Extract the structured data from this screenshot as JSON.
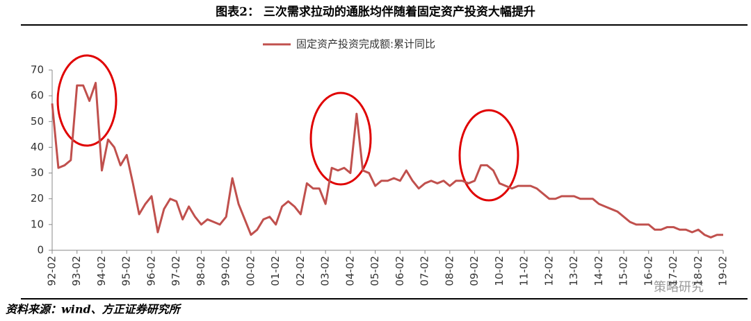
{
  "header": {
    "title": "图表2：  三次需求拉动的通胀均伴随着固定资产投资大幅提升"
  },
  "chart_data": {
    "type": "line",
    "categories": [
      "92-02",
      null,
      null,
      null,
      "93-02",
      null,
      null,
      null,
      "94-02",
      null,
      null,
      null,
      "95-02",
      null,
      null,
      null,
      "96-02",
      null,
      null,
      null,
      "97-02",
      null,
      null,
      null,
      "98-02",
      null,
      null,
      null,
      "99-02",
      null,
      null,
      null,
      "00-02",
      null,
      null,
      null,
      "01-02",
      null,
      null,
      null,
      "02-02",
      null,
      null,
      null,
      "03-02",
      null,
      null,
      null,
      "04-02",
      null,
      null,
      null,
      "05-02",
      null,
      null,
      null,
      "06-02",
      null,
      null,
      null,
      "07-02",
      null,
      null,
      null,
      "08-02",
      null,
      null,
      null,
      "09-02",
      null,
      null,
      null,
      "10-02",
      null,
      null,
      null,
      "11-02",
      null,
      null,
      null,
      "12-02",
      null,
      null,
      null,
      "13-02",
      null,
      null,
      null,
      "14-02",
      null,
      null,
      null,
      "15-02",
      null,
      null,
      null,
      "16-02",
      null,
      null,
      null,
      "17-02",
      null,
      null,
      null,
      "18-02",
      null,
      null,
      null,
      "19-02"
    ],
    "series": [
      {
        "name": "固定资产投资完成额:累计同比",
        "color": "#c0504d",
        "values": [
          57,
          32,
          33,
          35,
          64,
          64,
          58,
          65,
          31,
          43,
          40,
          33,
          37,
          26,
          14,
          18,
          21,
          7,
          16,
          20,
          19,
          12,
          17,
          13,
          10,
          12,
          11,
          10,
          13,
          28,
          18,
          12,
          6,
          8,
          12,
          13,
          10,
          17,
          19,
          17,
          14,
          26,
          24,
          24,
          18,
          32,
          31,
          32,
          30,
          53,
          31,
          30,
          25,
          27,
          27,
          28,
          27,
          31,
          27,
          24,
          26,
          27,
          26,
          27,
          25,
          27,
          27,
          26,
          27,
          33,
          33,
          31,
          26,
          25,
          24,
          25,
          25,
          25,
          24,
          22,
          20,
          20,
          21,
          21,
          21,
          20,
          20,
          20,
          18,
          17,
          16,
          15,
          13,
          11,
          10,
          10,
          10,
          8,
          8,
          9,
          9,
          8,
          8,
          7,
          8,
          6,
          5,
          6,
          6
        ]
      }
    ],
    "ylim": [
      0,
      70
    ],
    "yticks": [
      0,
      10,
      20,
      30,
      40,
      50,
      60,
      70
    ],
    "grid": false,
    "legend": "top"
  },
  "footer": {
    "source": "资料来源：wind、方正证券研究所",
    "watermark": "策略研究"
  }
}
